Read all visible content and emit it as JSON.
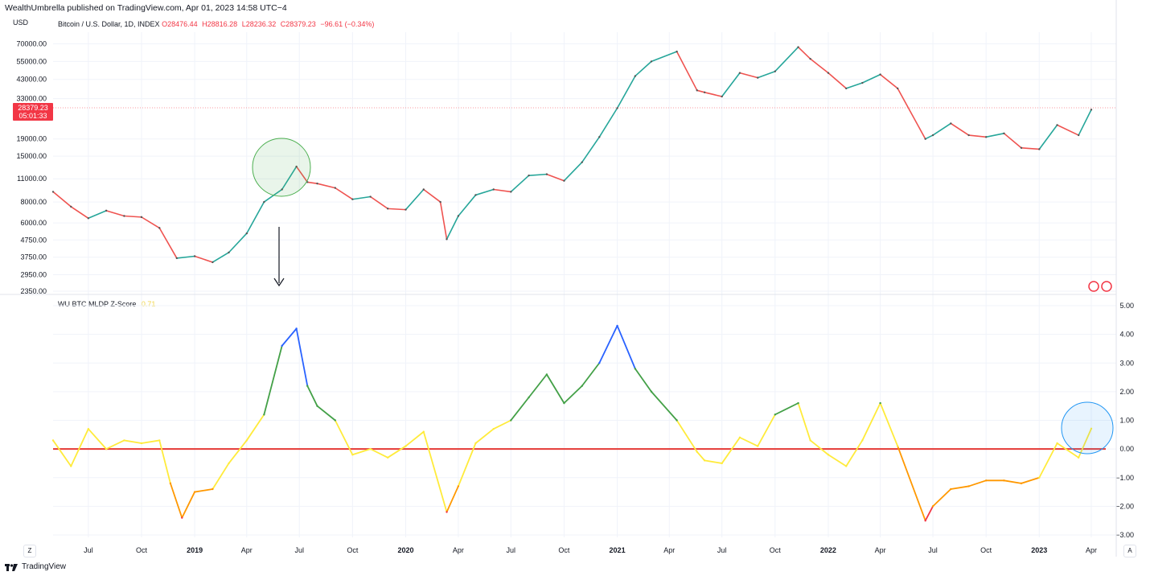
{
  "header": {
    "published": "WealthUmbrella published on TradingView.com, Apr 01, 2023 14:58 UTC−4"
  },
  "price_panel": {
    "currency": "USD",
    "symbol": "Bitcoin / U.S. Dollar, 1D, INDEX",
    "open": "O28476.44",
    "high": "H28816.28",
    "low": "L28236.32",
    "close": "C28379.23",
    "change": "−96.61 (−0.34%)",
    "last_price": "28379.23",
    "countdown": "05:01:33"
  },
  "indicator_panel": {
    "name": "WU BTC MLDP Z-Score",
    "value": "0.71"
  },
  "footer": {
    "brand": "TradingView",
    "left_button": "Z",
    "right_button": "A"
  },
  "colors": {
    "price_line_up": "#26a69a",
    "price_line_down": "#ef5350",
    "zero_line": "#e53935",
    "zscore_yellow": "#ffeb3b",
    "zscore_orange": "#ff9800",
    "zscore_red": "#f23645",
    "zscore_green": "#43a047",
    "zscore_blue": "#2962ff",
    "annotation_green": "#4caf50",
    "annotation_blue": "#2196f3"
  },
  "chart_data": [
    {
      "type": "line",
      "title": "Bitcoin / U.S. Dollar, 1D, INDEX",
      "y_scale": "log",
      "y_ticks": [
        "70000.00",
        "55000.00",
        "43000.00",
        "33000.00",
        "19000.00",
        "15000.00",
        "11000.00",
        "8000.00",
        "6000.00",
        "4750.00",
        "3750.00",
        "2950.00",
        "2350.00"
      ],
      "x_ticks": [
        "Jul",
        "Oct",
        "2019",
        "Apr",
        "Jul",
        "Oct",
        "2020",
        "Apr",
        "Jul",
        "Oct",
        "2021",
        "Apr",
        "Jul",
        "Oct",
        "2022",
        "Apr",
        "Jul",
        "Oct",
        "2023",
        "Apr"
      ],
      "x": [
        "2018-05-01",
        "2018-06-01",
        "2018-07-01",
        "2018-08-01",
        "2018-09-01",
        "2018-10-01",
        "2018-11-01",
        "2018-12-01",
        "2019-01-01",
        "2019-02-01",
        "2019-03-01",
        "2019-04-01",
        "2019-05-01",
        "2019-06-01",
        "2019-06-26",
        "2019-07-15",
        "2019-08-01",
        "2019-09-01",
        "2019-10-01",
        "2019-11-01",
        "2019-12-01",
        "2020-01-01",
        "2020-02-01",
        "2020-03-01",
        "2020-03-12",
        "2020-04-01",
        "2020-05-01",
        "2020-06-01",
        "2020-07-01",
        "2020-08-01",
        "2020-09-01",
        "2020-10-01",
        "2020-11-01",
        "2020-12-01",
        "2021-01-01",
        "2021-02-01",
        "2021-03-01",
        "2021-04-14",
        "2021-05-19",
        "2021-06-01",
        "2021-07-01",
        "2021-08-01",
        "2021-09-01",
        "2021-10-01",
        "2021-11-10",
        "2021-12-01",
        "2022-01-01",
        "2022-02-01",
        "2022-03-01",
        "2022-04-01",
        "2022-05-01",
        "2022-06-18",
        "2022-07-01",
        "2022-08-01",
        "2022-09-01",
        "2022-10-01",
        "2022-11-01",
        "2022-12-01",
        "2023-01-01",
        "2023-02-01",
        "2023-03-10",
        "2023-04-01"
      ],
      "y": [
        9200,
        7500,
        6400,
        7100,
        6600,
        6500,
        5600,
        3700,
        3800,
        3500,
        4000,
        5200,
        8000,
        9500,
        13000,
        10500,
        10300,
        9700,
        8300,
        8600,
        7300,
        7200,
        9500,
        8000,
        4800,
        6600,
        8800,
        9500,
        9200,
        11500,
        11700,
        10700,
        13800,
        19500,
        29000,
        45000,
        55000,
        63000,
        37000,
        36000,
        34000,
        47000,
        44000,
        48000,
        67000,
        57000,
        47000,
        38000,
        41000,
        46000,
        38000,
        19000,
        20000,
        23500,
        20000,
        19500,
        20500,
        16800,
        16500,
        23000,
        20000,
        28379
      ]
    },
    {
      "type": "line",
      "title": "WU BTC MLDP Z-Score",
      "y_ticks": [
        "5.00",
        "4.00",
        "3.00",
        "2.00",
        "1.00",
        "0.00",
        "−1.00",
        "−2.00",
        "−3.00"
      ],
      "ylim": [
        -3,
        5
      ],
      "zero_line": 0,
      "x": [
        "2018-05-01",
        "2018-06-01",
        "2018-07-01",
        "2018-08-01",
        "2018-09-01",
        "2018-10-01",
        "2018-11-01",
        "2018-11-20",
        "2018-12-10",
        "2019-01-01",
        "2019-02-01",
        "2019-03-01",
        "2019-04-01",
        "2019-05-01",
        "2019-06-01",
        "2019-06-26",
        "2019-07-15",
        "2019-08-01",
        "2019-09-01",
        "2019-10-01",
        "2019-11-01",
        "2019-12-01",
        "2020-01-01",
        "2020-02-01",
        "2020-03-12",
        "2020-04-01",
        "2020-05-01",
        "2020-06-01",
        "2020-07-01",
        "2020-08-01",
        "2020-09-01",
        "2020-10-01",
        "2020-11-01",
        "2020-12-01",
        "2021-01-01",
        "2021-02-01",
        "2021-03-01",
        "2021-04-14",
        "2021-05-19",
        "2021-06-01",
        "2021-07-01",
        "2021-08-01",
        "2021-09-01",
        "2021-10-01",
        "2021-11-10",
        "2021-12-01",
        "2022-01-01",
        "2022-02-01",
        "2022-03-01",
        "2022-04-01",
        "2022-05-01",
        "2022-06-18",
        "2022-07-01",
        "2022-08-01",
        "2022-09-01",
        "2022-10-01",
        "2022-11-01",
        "2022-12-01",
        "2023-01-01",
        "2023-02-01",
        "2023-03-10",
        "2023-04-01"
      ],
      "y": [
        0.3,
        -0.6,
        0.7,
        0.0,
        0.3,
        0.2,
        0.3,
        -1.2,
        -2.4,
        -1.5,
        -1.4,
        -0.5,
        0.3,
        1.2,
        3.6,
        4.2,
        2.2,
        1.5,
        1.0,
        -0.2,
        0.0,
        -0.3,
        0.1,
        0.6,
        -2.2,
        -1.3,
        0.2,
        0.7,
        1.0,
        1.8,
        2.6,
        1.6,
        2.2,
        3.0,
        4.3,
        2.8,
        2.0,
        1.0,
        -0.1,
        -0.4,
        -0.5,
        0.4,
        0.1,
        1.2,
        1.6,
        0.3,
        -0.2,
        -0.6,
        0.3,
        1.6,
        0.1,
        -2.5,
        -2.0,
        -1.4,
        -1.3,
        -1.1,
        -1.1,
        -1.2,
        -1.0,
        0.2,
        -0.3,
        0.71
      ]
    }
  ]
}
